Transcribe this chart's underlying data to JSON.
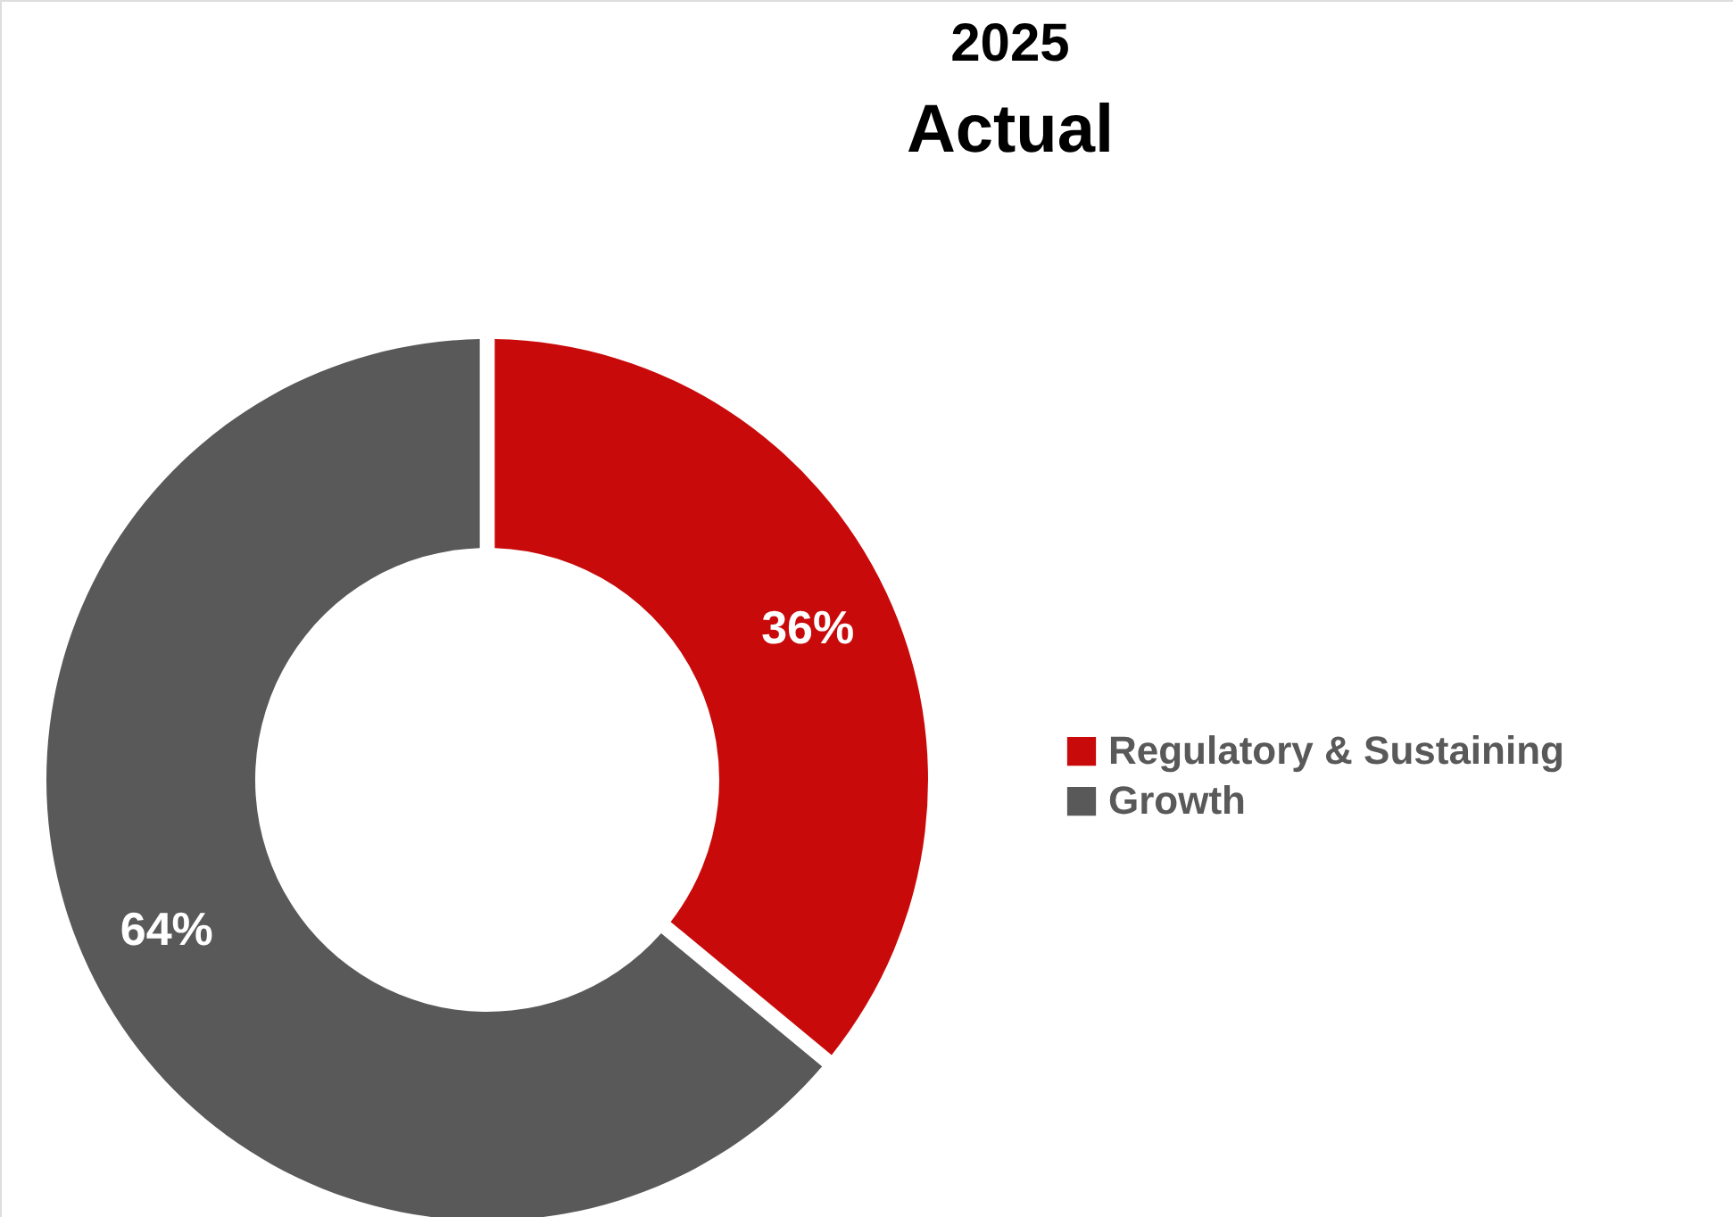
{
  "chart_data": {
    "type": "donut",
    "title": "2025",
    "subtitle": "Actual",
    "categories": [
      "Regulatory & Sustaining",
      "Growth"
    ],
    "values": [
      36,
      64
    ],
    "colors": [
      "#c90a0a",
      "#595959"
    ],
    "value_labels": [
      "36%",
      "64%"
    ],
    "legend": "right"
  }
}
